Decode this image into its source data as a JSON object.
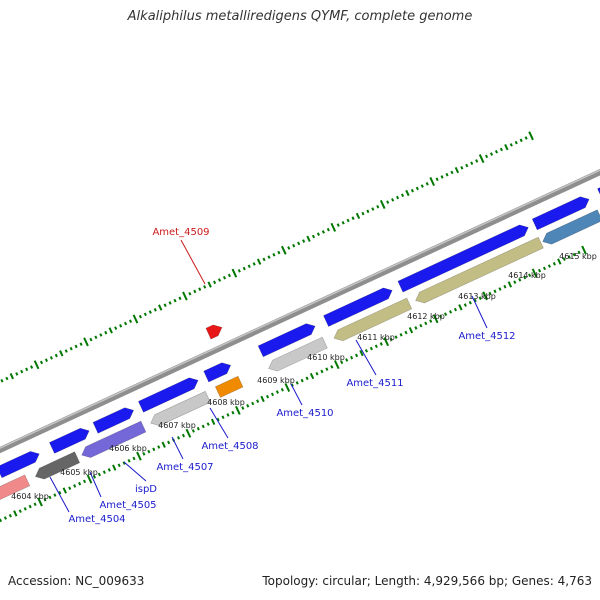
{
  "title": "Alkaliphilus metalliredigens QYMF, complete genome",
  "footer": {
    "accession": "Accession: NC_009633",
    "topology": "Topology: circular; Length: 4,929,566 bp; Genes: 4,763"
  },
  "colors": {
    "backbone": "#8e8e8e",
    "tick": "#007700",
    "forward_gene": "#1a1aee",
    "reverse_gene_tan": "#c2bd84",
    "reverse_gene_gray": "#c8c8c8",
    "reverse_gene_dark": "#666666",
    "reverse_gene_purple": "#7467d8",
    "reverse_gene_steel": "#4f86b8",
    "reverse_gene_pink": "#f08a8a",
    "orange_gene": "#f08a00",
    "red_gene": "#e81818",
    "label_blue": "#1a1acc",
    "label_red": "#cc1a1a"
  },
  "scale_labels": [
    "4604 kbp",
    "4605 kbp",
    "4606 kbp",
    "4607 kbp",
    "4608 kbp",
    "4609 kbp",
    "4610 kbp",
    "4611 kbp",
    "4612 kbp",
    "4613 kbp",
    "4614 kbp",
    "4615 kbp"
  ],
  "gene_labels": [
    "Amet_4509",
    "Amet_4504",
    "Amet_4505",
    "ispD",
    "Amet_4507",
    "Amet_4508",
    "Amet_4510",
    "Amet_4511",
    "Amet_4512"
  ]
}
